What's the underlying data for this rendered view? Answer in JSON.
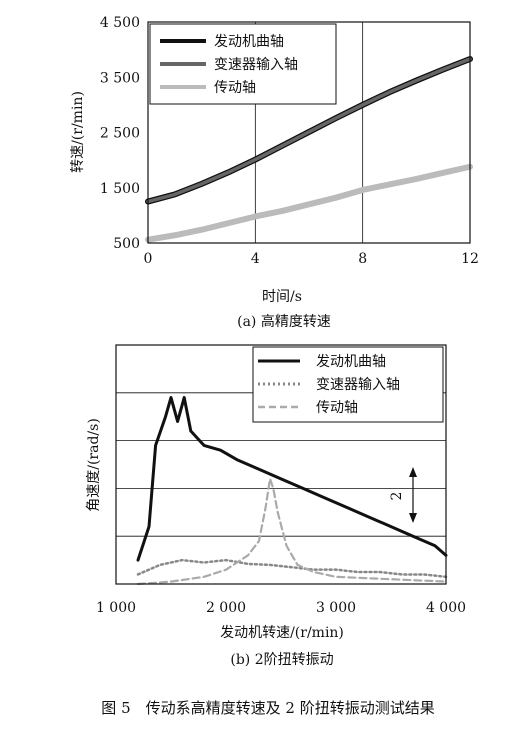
{
  "figure_caption": "图 5　传动系高精度转速及 2 阶扭转振动测试结果",
  "chart_data": [
    {
      "type": "line",
      "panel_caption": "(a) 高精度转速",
      "xlabel": "时间/s",
      "ylabel": "转速/(r/min)",
      "xlim": [
        0,
        12
      ],
      "ylim": [
        500,
        4500
      ],
      "x_ticks": [
        "0",
        "4",
        "8",
        "12"
      ],
      "y_ticks": [
        "500",
        "1 500",
        "2 500",
        "3 500",
        "4 500"
      ],
      "grid": "vertical",
      "legend": "top-left",
      "series": [
        {
          "name": "发动机曲轴",
          "color": "#111111",
          "x": [
            0,
            1,
            2,
            3,
            4,
            5,
            6,
            7,
            8,
            9,
            10,
            11,
            12
          ],
          "y": [
            1250,
            1380,
            1570,
            1780,
            2010,
            2260,
            2510,
            2760,
            3000,
            3230,
            3440,
            3640,
            3830
          ]
        },
        {
          "name": "变速器输入轴",
          "color": "#666666",
          "x": [
            0,
            1,
            2,
            3,
            4,
            5,
            6,
            7,
            8,
            9,
            10,
            11,
            12
          ],
          "y": [
            1250,
            1380,
            1570,
            1780,
            2010,
            2260,
            2510,
            2760,
            3000,
            3230,
            3440,
            3640,
            3830
          ]
        },
        {
          "name": "传动轴",
          "color": "#bbbbbb",
          "x": [
            0,
            1,
            2,
            3,
            4,
            5,
            6,
            7,
            8,
            9,
            10,
            11,
            12
          ],
          "y": [
            560,
            640,
            740,
            860,
            980,
            1080,
            1200,
            1320,
            1460,
            1560,
            1660,
            1770,
            1880
          ]
        }
      ]
    },
    {
      "type": "line",
      "panel_caption": "(b)  2阶扭转振动",
      "xlabel": "发动机转速/(r/min)",
      "ylabel": "角速度/(rad/s)",
      "xlim": [
        1000,
        4000
      ],
      "ylim": [
        0,
        5
      ],
      "x_ticks": [
        "1 000",
        "2 000",
        "3 000",
        "4 000"
      ],
      "y_ticks_shown": false,
      "grid": "horizontal",
      "legend": "top-right",
      "annotation": "2",
      "series": [
        {
          "name": "发动机曲轴",
          "color": "#111111",
          "dash": "solid",
          "x": [
            1200,
            1300,
            1360,
            1450,
            1500,
            1560,
            1620,
            1680,
            1800,
            1950,
            2100,
            2300,
            2500,
            2700,
            2900,
            3100,
            3300,
            3500,
            3700,
            3900,
            4000
          ],
          "y": [
            0.5,
            1.2,
            2.9,
            3.5,
            3.9,
            3.4,
            3.9,
            3.2,
            2.9,
            2.8,
            2.6,
            2.4,
            2.2,
            2.0,
            1.8,
            1.6,
            1.4,
            1.2,
            1.0,
            0.8,
            0.6
          ]
        },
        {
          "name": "变速器输入轴",
          "color": "#888888",
          "dash": "dotted",
          "x": [
            1200,
            1400,
            1600,
            1800,
            2000,
            2200,
            2400,
            2600,
            2800,
            3000,
            3200,
            3400,
            3600,
            3800,
            4000
          ],
          "y": [
            0.2,
            0.4,
            0.5,
            0.45,
            0.5,
            0.42,
            0.4,
            0.35,
            0.3,
            0.3,
            0.25,
            0.25,
            0.2,
            0.2,
            0.15
          ]
        },
        {
          "name": "传动轴",
          "color": "#aaaaaa",
          "dash": "dashed",
          "x": [
            1200,
            1500,
            1800,
            2000,
            2200,
            2300,
            2360,
            2400,
            2430,
            2470,
            2550,
            2650,
            2800,
            3000,
            3500,
            4000
          ],
          "y": [
            0.0,
            0.05,
            0.15,
            0.3,
            0.6,
            0.9,
            1.6,
            2.2,
            2.0,
            1.5,
            0.8,
            0.4,
            0.25,
            0.15,
            0.1,
            0.05
          ]
        }
      ]
    }
  ]
}
